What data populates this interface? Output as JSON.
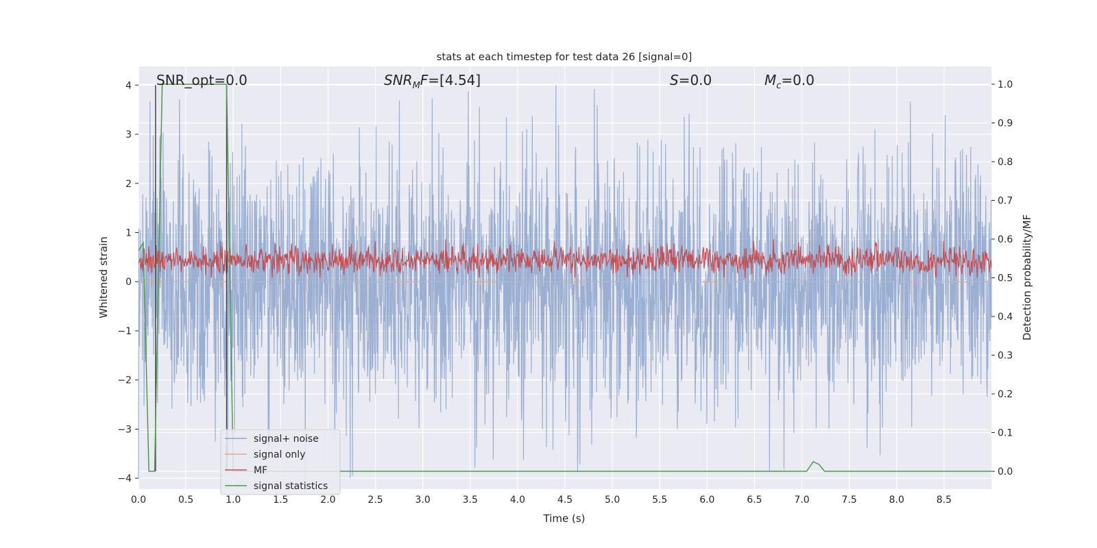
{
  "chart_data": {
    "type": "line",
    "title": "stats at each timestep for test data 26 [signal=0]",
    "xlabel": "Time (s)",
    "ylabel_left": "Whitened strain",
    "ylabel_right": "Detection probability/MF",
    "xlim": [
      0.0,
      9.0
    ],
    "ylim_left": [
      -4.22,
      4.38
    ],
    "ylim_right": [
      -0.046,
      1.046
    ],
    "x_ticks": [
      "0.0",
      "0.5",
      "1.0",
      "1.5",
      "2.0",
      "2.5",
      "3.0",
      "3.5",
      "4.0",
      "4.5",
      "5.0",
      "5.5",
      "6.0",
      "6.5",
      "7.0",
      "7.5",
      "8.0",
      "8.5"
    ],
    "y_ticks_left": [
      "4",
      "3",
      "2",
      "1",
      "0",
      "−1",
      "−2",
      "−3",
      "−4"
    ],
    "y_ticks_right": [
      "1.0",
      "0.9",
      "0.8",
      "0.7",
      "0.6",
      "0.5",
      "0.4",
      "0.3",
      "0.2",
      "0.1",
      "0.0"
    ],
    "grid": true,
    "legend_position": "lower-left",
    "annotations": {
      "snr_opt": {
        "label": "SNR_opt",
        "value": "=0.0"
      },
      "snr_mf": {
        "label": "SNR",
        "sub": "M",
        "mid": "F",
        "value": "=[4.54]"
      },
      "s": {
        "label": "S",
        "value": "=0.0"
      },
      "mc": {
        "label": "M",
        "sub": "c",
        "value": "=0.0"
      }
    },
    "series": [
      {
        "name": "signal+ noise",
        "color": "#8da4cc",
        "axis": "left",
        "description": "whitened strain noise, approx. Gaussian, peaks about +4.0 / -3.9",
        "envelope_abs_max": 4.0
      },
      {
        "name": "signal only",
        "color": "#e8a885",
        "axis": "left",
        "values_x": [
          0.0,
          9.0
        ],
        "values_y": [
          0.0,
          0.0
        ]
      },
      {
        "name": "MF",
        "color": "#c44e52",
        "axis": "right",
        "description": "matched filter output, mostly 0.50 to 0.58, peak about 0.60",
        "range": [
          0.5,
          0.6
        ]
      },
      {
        "name": "signal statistics",
        "color": "#4c9a4c",
        "axis": "right",
        "x": [
          0.0,
          0.05,
          0.11,
          0.17,
          0.25,
          0.93,
          1.0,
          1.05,
          1.2,
          7.05,
          7.12,
          7.18,
          7.24,
          9.0
        ],
        "y": [
          0.57,
          0.59,
          0.0,
          0.0,
          1.0,
          1.0,
          0.0,
          0.0,
          0.0,
          0.0,
          0.025,
          0.018,
          0.0,
          0.0
        ]
      }
    ],
    "vertical_markers": [
      {
        "x": 0.18,
        "color": "#444444"
      },
      {
        "x": 0.93,
        "color": "#444444"
      }
    ]
  }
}
